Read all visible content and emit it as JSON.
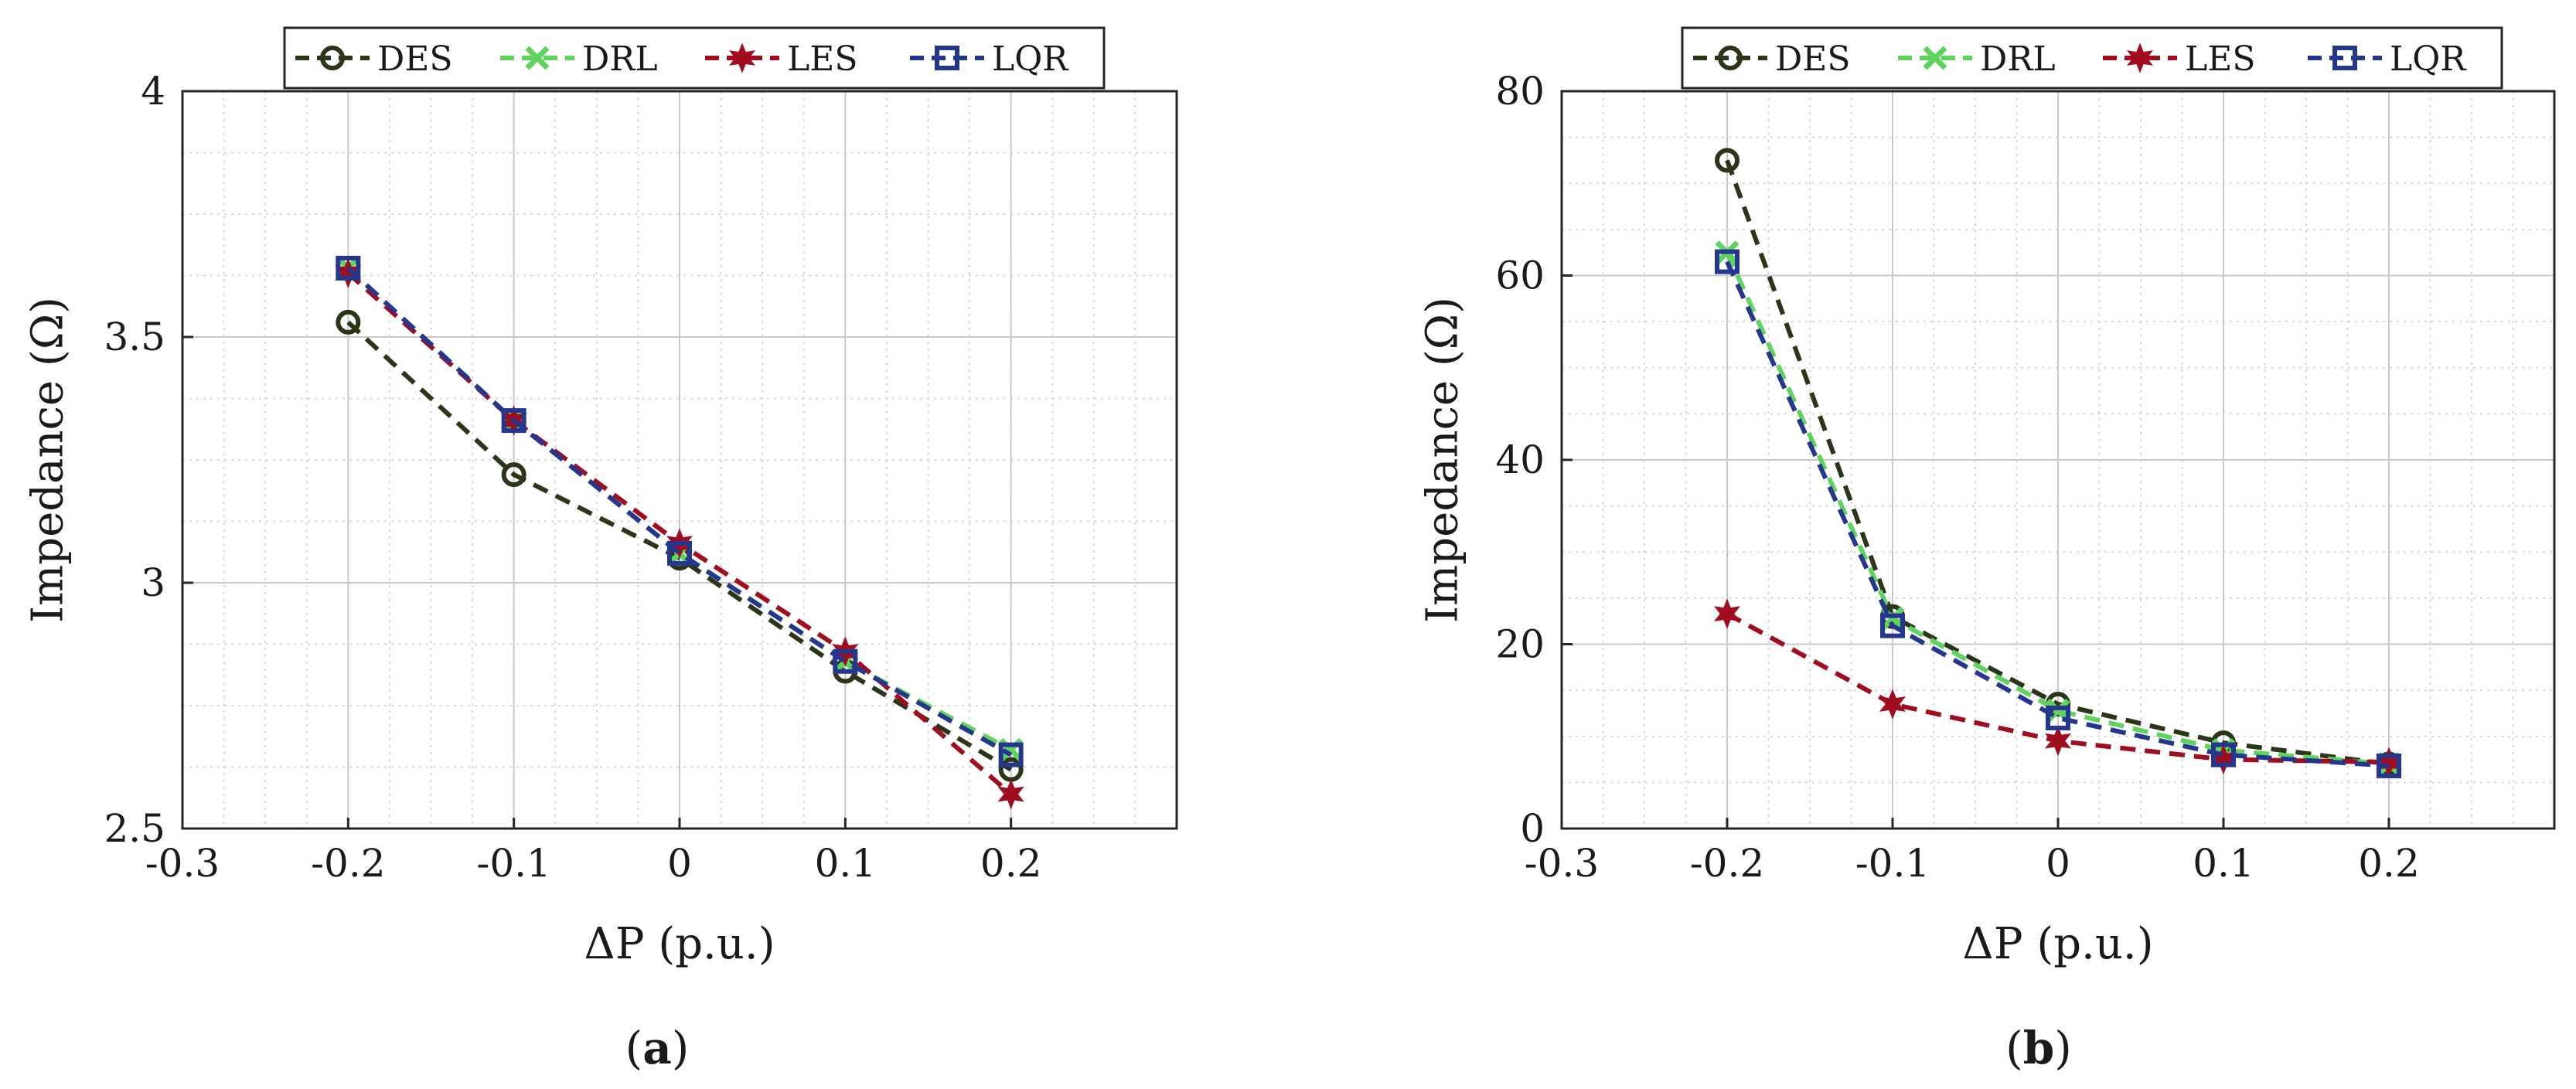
{
  "chart_data": [
    {
      "type": "line",
      "caption": "a",
      "xlabel": "ΔP (p.u.)",
      "ylabel": "Impedance (Ω)",
      "xlim": [
        -0.3,
        0.3
      ],
      "ylim": [
        2.5,
        4
      ],
      "xticks": [
        -0.3,
        -0.2,
        -0.1,
        0,
        0.1,
        0.2
      ],
      "xtick_labels": [
        "-0.3",
        "-0.2",
        "-0.1",
        "0",
        "0.1",
        "0.2"
      ],
      "yticks": [
        2.5,
        3,
        3.5,
        4
      ],
      "ytick_labels": [
        "2.5",
        "3",
        "3.5",
        "4"
      ],
      "grid": true,
      "minor_grid": true,
      "legend_position": "top",
      "x": [
        -0.2,
        -0.1,
        0,
        0.1,
        0.2
      ],
      "series": [
        {
          "name": "DES",
          "values": [
            3.53,
            3.22,
            3.05,
            2.82,
            2.62
          ],
          "color": "#2b3518",
          "marker": "circle"
        },
        {
          "name": "DRL",
          "values": [
            3.64,
            3.33,
            3.06,
            2.84,
            2.66
          ],
          "color": "#5ed45e",
          "marker": "x"
        },
        {
          "name": "LES",
          "values": [
            3.63,
            3.33,
            3.08,
            2.86,
            2.57
          ],
          "color": "#a00d1e",
          "marker": "hexagram"
        },
        {
          "name": "LQR",
          "values": [
            3.64,
            3.33,
            3.06,
            2.84,
            2.65
          ],
          "color": "#25368e",
          "marker": "square"
        }
      ]
    },
    {
      "type": "line",
      "caption": "b",
      "xlabel": "ΔP (p.u.)",
      "ylabel": "Impedance (Ω)",
      "xlim": [
        -0.3,
        0.3
      ],
      "ylim": [
        0,
        80
      ],
      "xticks": [
        -0.3,
        -0.2,
        -0.1,
        0,
        0.1,
        0.2
      ],
      "xtick_labels": [
        "-0.3",
        "-0.2",
        "-0.1",
        "0",
        "0.1",
        "0.2"
      ],
      "yticks": [
        0,
        20,
        40,
        60,
        80
      ],
      "ytick_labels": [
        "0",
        "20",
        "40",
        "60",
        "80"
      ],
      "grid": true,
      "minor_grid": true,
      "legend_position": "top",
      "x": [
        -0.2,
        -0.1,
        0,
        0.1,
        0.2
      ],
      "series": [
        {
          "name": "DES",
          "values": [
            72.5,
            23.0,
            13.5,
            9.3,
            7.0
          ],
          "color": "#2b3518",
          "marker": "circle"
        },
        {
          "name": "DRL",
          "values": [
            62.5,
            22.8,
            12.8,
            8.5,
            7.0
          ],
          "color": "#5ed45e",
          "marker": "x"
        },
        {
          "name": "LES",
          "values": [
            23.3,
            13.5,
            9.5,
            7.5,
            7.2
          ],
          "color": "#a00d1e",
          "marker": "hexagram"
        },
        {
          "name": "LQR",
          "values": [
            61.5,
            22.0,
            12.0,
            8.0,
            6.8
          ],
          "color": "#25368e",
          "marker": "square"
        }
      ]
    }
  ]
}
